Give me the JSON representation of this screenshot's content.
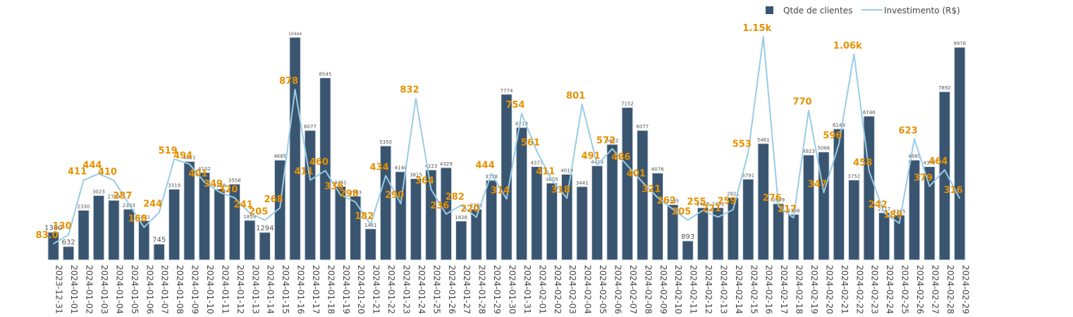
{
  "chart_data": {
    "type": "bar",
    "categories": [
      "2023-12-31",
      "2024-01-01",
      "2024-01-02",
      "2024-01-03",
      "2024-01-04",
      "2024-01-05",
      "2024-01-06",
      "2024-01-07",
      "2024-01-08",
      "2024-01-09",
      "2024-01-10",
      "2024-01-11",
      "2024-01-12",
      "2024-01-13",
      "2024-01-14",
      "2024-01-15",
      "2024-01-16",
      "2024-01-17",
      "2024-01-18",
      "2024-01-19",
      "2024-01-20",
      "2024-01-21",
      "2024-01-22",
      "2024-01-23",
      "2024-01-24",
      "2024-01-25",
      "2024-01-26",
      "2024-01-27",
      "2024-01-28",
      "2024-01-29",
      "2024-01-30",
      "2024-01-31",
      "2024-02-01",
      "2024-02-02",
      "2024-02-03",
      "2024-02-04",
      "2024-02-05",
      "2024-02-06",
      "2024-02-07",
      "2024-02-08",
      "2024-02-09",
      "2024-02-10",
      "2024-02-11",
      "2024-02-12",
      "2024-02-13",
      "2024-02-14",
      "2024-02-15",
      "2024-02-16",
      "2024-02-17",
      "2024-02-18",
      "2024-02-19",
      "2024-02-20",
      "2024-02-21",
      "2024-02-22",
      "2024-02-23",
      "2024-02-24",
      "2024-02-25",
      "2024-02-26",
      "2024-02-27",
      "2024-02-28",
      "2024-02-29"
    ],
    "series": [
      {
        "name": "Qtde de clientes",
        "kind": "bar",
        "color": "#3a5570",
        "values": [
          1300,
          632,
          2330,
          3023,
          2799,
          2383,
          1841,
          745,
          3319,
          4621,
          4102,
          3328,
          3558,
          1859,
          1294,
          4685,
          10444,
          6077,
          8545,
          3451,
          2993,
          1461,
          5350,
          4140,
          3815,
          4223,
          4329,
          1826,
          2382,
          3738,
          7774,
          6213,
          4377,
          3605,
          4019,
          3441,
          4419,
          5422,
          7152,
          6077,
          4076,
          2595,
          893,
          2449,
          2451,
          2921,
          3791,
          5461,
          2639,
          2138,
          4923,
          5066,
          6149,
          3752,
          6746,
          2217,
          2105,
          4685,
          4377,
          7892,
          9978
        ],
        "labels": [
          "1300",
          "632",
          "2330",
          "3023",
          "2799",
          "2383",
          "1841",
          "745",
          "3319",
          "4621",
          "4102",
          "3328",
          "3558",
          "1859",
          "1294",
          "4685",
          "10444",
          "6077",
          "8545",
          "3451",
          "2993",
          "1461",
          "5350",
          "4140",
          "3815",
          "4223",
          "4329",
          "1826",
          "2382",
          "3738",
          "7774",
          "6213",
          "4377",
          "3605",
          "4019",
          "3441",
          "4419",
          "5422",
          "7152",
          "6077",
          "4076",
          "2595",
          "893",
          "2449",
          "2451",
          "2921",
          "3791",
          "5461",
          "2639",
          "2138",
          "4923",
          "5066",
          "6149",
          "3752",
          "6746",
          "2217",
          "2105",
          "4685",
          "4377",
          "7892",
          "9978"
        ]
      },
      {
        "name": "Investimento (R$)",
        "kind": "line",
        "color": "#99cce6",
        "values": [
          83,
          130,
          411,
          444,
          410,
          287,
          168,
          244,
          519,
          494,
          401,
          349,
          320,
          241,
          205,
          268,
          878,
          411,
          460,
          336,
          298,
          182,
          434,
          290,
          832,
          364,
          236,
          282,
          220,
          444,
          314,
          754,
          561,
          411,
          318,
          801,
          491,
          572,
          486,
          401,
          321,
          262,
          205,
          255,
          221,
          259,
          553,
          1150,
          276,
          217,
          770,
          347,
          596,
          1060,
          458,
          242,
          189,
          623,
          379,
          464,
          316
        ],
        "labels": [
          "83.0",
          "130",
          "411",
          "444",
          "410",
          "287",
          "168",
          "244",
          "519",
          "494",
          "401",
          "349",
          "320",
          "241",
          "205",
          "268",
          "878",
          "411",
          "460",
          "336",
          "298",
          "182",
          "434",
          "290",
          "832",
          "364",
          "236",
          "282",
          "220",
          "444",
          "314",
          "754",
          "561",
          "411",
          "318",
          "801",
          "491",
          "572",
          "486",
          "401",
          "321",
          "262",
          "205",
          "255",
          "221",
          "259",
          "553",
          "1.15k",
          "276",
          "217",
          "770",
          "347",
          "596",
          "1.06k",
          "458",
          "242",
          "189",
          "623",
          "379",
          "464",
          "316"
        ]
      }
    ],
    "bar_axis_range": [
      0,
      10444
    ],
    "line_axis_range": [
      0,
      1150
    ],
    "grid": false,
    "legend": "top-right"
  }
}
